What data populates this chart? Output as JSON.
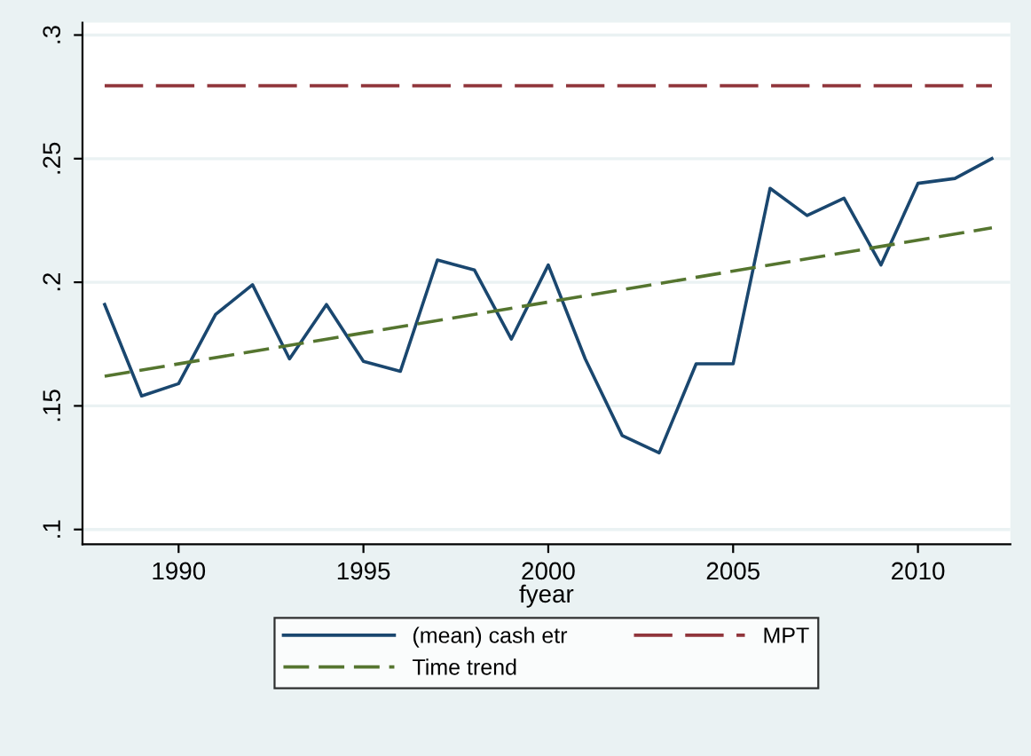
{
  "chart_data": {
    "type": "line",
    "xlabel": "fyear",
    "x": [
      1988,
      1989,
      1990,
      1991,
      1992,
      1993,
      1994,
      1995,
      1996,
      1997,
      1998,
      1999,
      2000,
      2001,
      2002,
      2003,
      2004,
      2005,
      2006,
      2007,
      2008,
      2009,
      2010,
      2011,
      2012
    ],
    "series": [
      {
        "name": "(mean) cash etr",
        "color": "#1a476f",
        "line_style": "solid",
        "values": [
          0.191,
          0.154,
          0.159,
          0.187,
          0.199,
          0.169,
          0.191,
          0.168,
          0.164,
          0.209,
          0.205,
          0.177,
          0.207,
          0.169,
          0.138,
          0.131,
          0.167,
          0.167,
          0.238,
          0.227,
          0.234,
          0.207,
          0.24,
          0.242,
          0.25
        ]
      },
      {
        "name": "Time trend",
        "color": "#55752f",
        "line_style": "dashed",
        "x": [
          1988,
          2012
        ],
        "values": [
          0.162,
          0.222
        ]
      }
    ],
    "ref_lines": [
      {
        "axis": "y",
        "value": 0.2795,
        "label": "MPT",
        "color": "#90353b",
        "line_style": "dashed"
      }
    ],
    "xlim": [
      1987.4,
      2012.5
    ],
    "xticks": [
      1990,
      1995,
      2000,
      2005,
      2010
    ],
    "ylim": [
      0.094,
      0.305
    ],
    "yticks": [
      {
        "value": 0.1,
        "label": ".1"
      },
      {
        "value": 0.15,
        "label": ".15"
      },
      {
        "value": 0.2,
        "label": ".2"
      },
      {
        "value": 0.25,
        "label": ".25"
      },
      {
        "value": 0.3,
        "label": ".3"
      }
    ],
    "grid": "y",
    "legend": "bottom",
    "marker": "none"
  }
}
